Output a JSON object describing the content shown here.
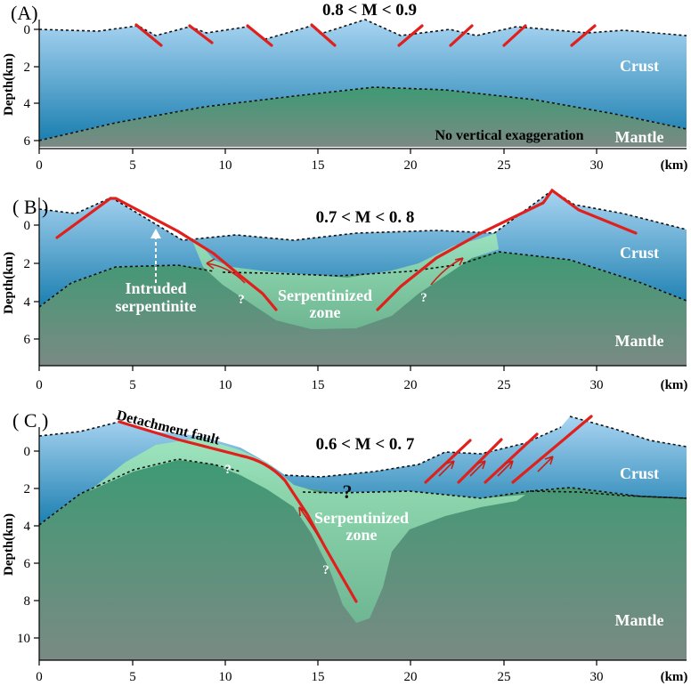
{
  "colors": {
    "crust_top": "#a9d4f2",
    "crust_bottom": "#1b7fb0",
    "mantle_top": "#3e9a74",
    "mantle_bottom": "#7a8a84",
    "serpentinite": "#8fd9ad",
    "fault": "#e0201c"
  },
  "axes": {
    "x_ticks": [
      "0",
      "5",
      "10",
      "15",
      "20",
      "25",
      "30"
    ],
    "x_unit": "(km)",
    "y_label": "Depth(km)"
  },
  "panels": [
    {
      "label": "(A)",
      "m_range": "0.8 < M < 0.9",
      "y_ticks": [
        "0",
        "2",
        "4",
        "6"
      ],
      "crust_label": "Crust",
      "mantle_label": "Mantle",
      "note": "No vertical exaggeration"
    },
    {
      "label": "( B )",
      "m_range": "0.7 < M < 0. 8",
      "y_ticks": [
        "0",
        "2",
        "4",
        "6"
      ],
      "crust_label": "Crust",
      "mantle_label": "Mantle",
      "zone_label_1": "Serpentinized",
      "zone_label_2": "zone",
      "intruded_1": "Intruded",
      "intruded_2": "serpentinite",
      "q1": "?",
      "q2": "?"
    },
    {
      "label": "( C )",
      "m_range": "0.6 < M < 0. 7",
      "y_ticks": [
        "0",
        "2",
        "4",
        "6",
        "8",
        "10"
      ],
      "crust_label": "Crust",
      "mantle_label": "Mantle",
      "zone_label_1": "Serpentinized",
      "zone_label_2": "zone",
      "detachment": "Detachment fault",
      "q_big": "?",
      "q1": "?",
      "q2": "?"
    }
  ]
}
